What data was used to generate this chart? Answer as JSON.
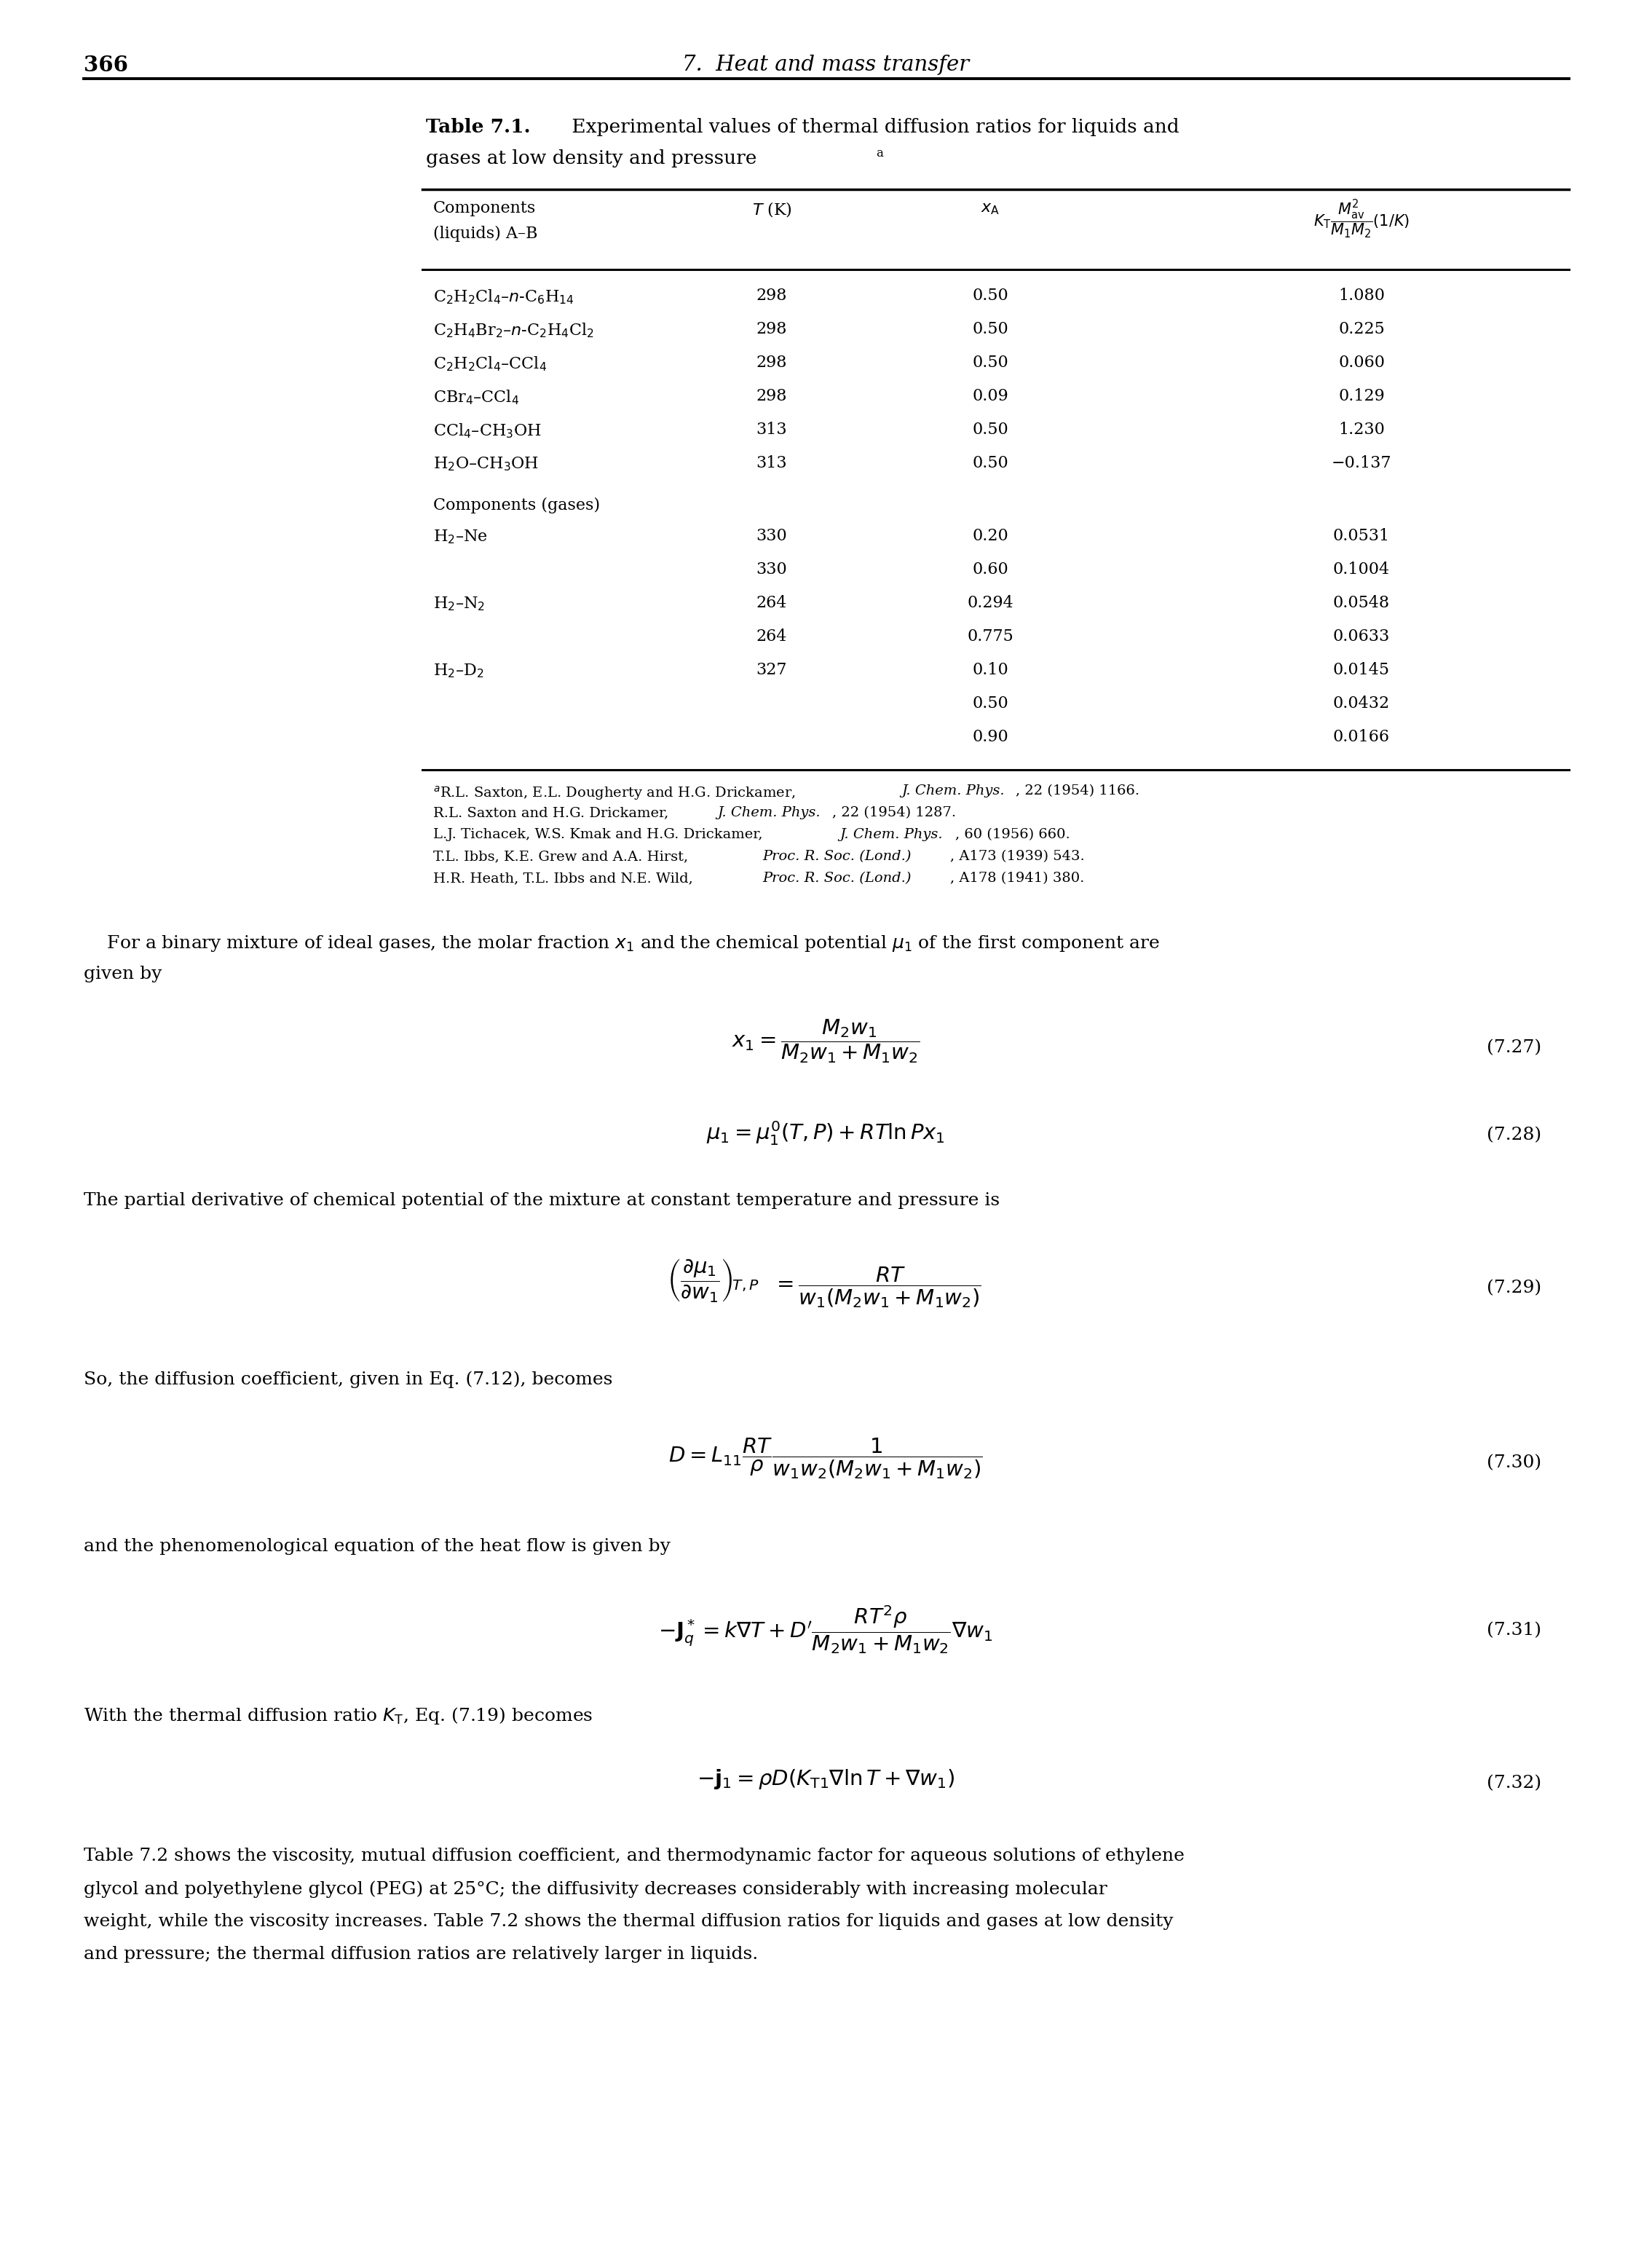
{
  "page_number": "366",
  "header_text": "7.  Heat and mass transfer",
  "table_title_bold": "Table 7.1.",
  "table_title_rest": "  Experimental values of thermal diffusion ratios for liquids and",
  "table_title_line2": "gases at low density and pressure",
  "table_title_sup": "a",
  "liquid_rows": [
    {
      "comp": "C$_2$H$_2$Cl$_4$–$n$-C$_6$H$_{14}$",
      "T": "298",
      "xA": "0.50",
      "KT": "1.080"
    },
    {
      "comp": "C$_2$H$_4$Br$_2$–$n$-C$_2$H$_4$Cl$_2$",
      "T": "298",
      "xA": "0.50",
      "KT": "0.225"
    },
    {
      "comp": "C$_2$H$_2$Cl$_4$–CCl$_4$",
      "T": "298",
      "xA": "0.50",
      "KT": "0.060"
    },
    {
      "comp": "CBr$_4$–CCl$_4$",
      "T": "298",
      "xA": "0.09",
      "KT": "0.129"
    },
    {
      "comp": "CCl$_4$–CH$_3$OH",
      "T": "313",
      "xA": "0.50",
      "KT": "1.230"
    },
    {
      "comp": "H$_2$O–CH$_3$OH",
      "T": "313",
      "xA": "0.50",
      "KT": "−0.137"
    }
  ],
  "gas_rows": [
    {
      "comp": "H$_2$–Ne",
      "T": "330",
      "xA": "0.20",
      "KT": "0.0531",
      "show_comp": true
    },
    {
      "comp": "",
      "T": "330",
      "xA": "0.60",
      "KT": "0.1004",
      "show_comp": false
    },
    {
      "comp": "H$_2$–N$_2$",
      "T": "264",
      "xA": "0.294",
      "KT": "0.0548",
      "show_comp": true
    },
    {
      "comp": "",
      "T": "264",
      "xA": "0.775",
      "KT": "0.0633",
      "show_comp": false
    },
    {
      "comp": "H$_2$–D$_2$",
      "T": "327",
      "xA": "0.10",
      "KT": "0.0145",
      "show_comp": true
    },
    {
      "comp": "",
      "T": "",
      "xA": "0.50",
      "KT": "0.0432",
      "show_comp": false
    },
    {
      "comp": "",
      "T": "",
      "xA": "0.90",
      "KT": "0.0166",
      "show_comp": false
    }
  ],
  "background_color": "#ffffff"
}
